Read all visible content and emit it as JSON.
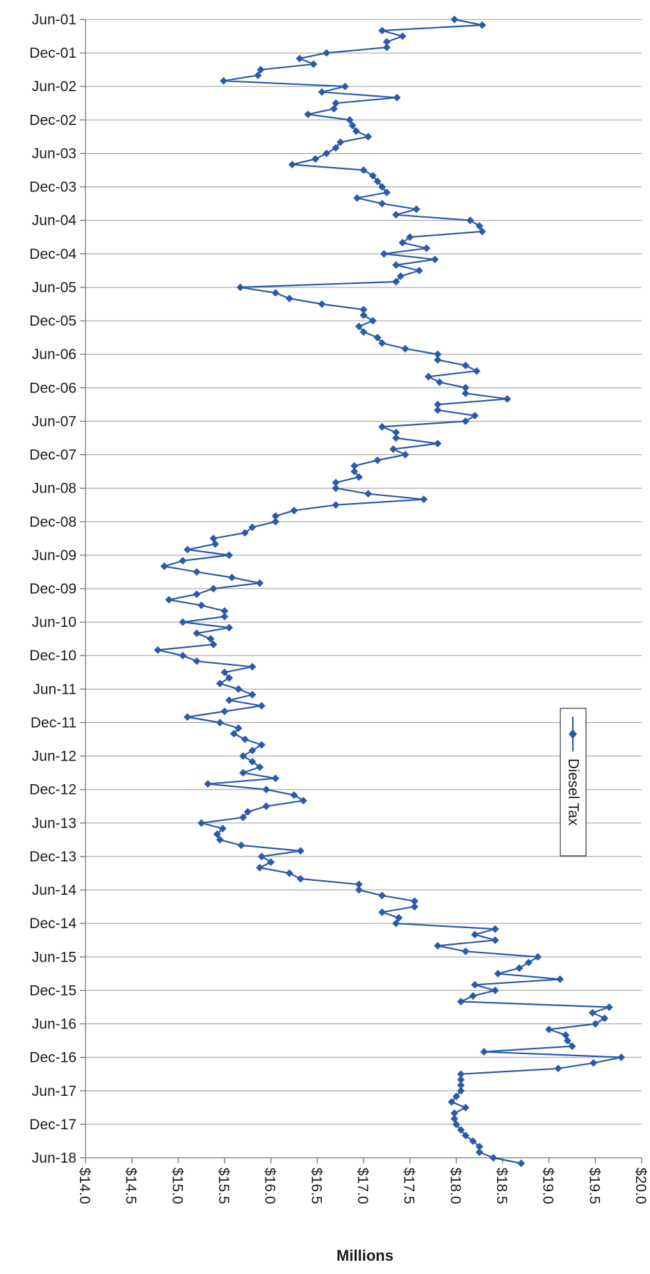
{
  "chart_data": {
    "type": "line",
    "xlabel": "Millions",
    "x_ticks": [
      "$14.0",
      "$14.5",
      "$15.0",
      "$15.5",
      "$16.0",
      "$16.5",
      "$17.0",
      "$17.5",
      "$18.0",
      "$18.5",
      "$19.0",
      "$19.5",
      "$20.0"
    ],
    "xlim": [
      14.0,
      20.0
    ],
    "y_ticks": [
      "Jun-01",
      "Dec-01",
      "Jun-02",
      "Dec-02",
      "Jun-03",
      "Dec-03",
      "Jun-04",
      "Dec-04",
      "Jun-05",
      "Dec-05",
      "Jun-06",
      "Dec-06",
      "Jun-07",
      "Dec-07",
      "Jun-08",
      "Dec-08",
      "Jun-09",
      "Dec-09",
      "Jun-10",
      "Dec-10",
      "Jun-11",
      "Dec-11",
      "Jun-12",
      "Dec-12",
      "Jun-13",
      "Dec-13",
      "Jun-14",
      "Dec-14",
      "Jun-15",
      "Dec-15",
      "Jun-16",
      "Dec-16",
      "Jun-17",
      "Dec-17",
      "Jun-18"
    ],
    "y_order": "top-to-bottom",
    "grid": true,
    "legend": {
      "position": "right",
      "orientation": "vertical"
    },
    "colors": {
      "series": "#2a5aa8"
    },
    "series": [
      {
        "name": "Diesel Tax",
        "start": "Jun-01",
        "frequency": "monthly",
        "values": [
          17.98,
          18.28,
          17.2,
          17.42,
          17.25,
          17.25,
          16.6,
          16.31,
          16.46,
          15.89,
          15.86,
          15.49,
          16.8,
          16.55,
          17.36,
          16.7,
          16.68,
          16.4,
          16.85,
          16.88,
          16.92,
          17.05,
          16.75,
          16.7,
          16.6,
          16.48,
          16.23,
          17.0,
          17.1,
          17.15,
          17.2,
          17.25,
          16.93,
          17.2,
          17.57,
          17.35,
          18.15,
          18.25,
          18.28,
          17.5,
          17.42,
          17.68,
          17.22,
          17.77,
          17.35,
          17.6,
          17.4,
          17.35,
          15.67,
          16.05,
          16.2,
          16.55,
          17.0,
          17.0,
          17.1,
          16.95,
          17.0,
          17.15,
          17.2,
          17.45,
          17.8,
          17.8,
          18.1,
          18.22,
          17.7,
          17.82,
          18.1,
          18.1,
          18.55,
          17.8,
          17.8,
          18.2,
          18.1,
          17.2,
          17.35,
          17.35,
          17.8,
          17.32,
          17.45,
          17.15,
          16.9,
          16.9,
          16.95,
          16.7,
          16.7,
          17.05,
          17.65,
          16.7,
          16.25,
          16.05,
          16.05,
          15.8,
          15.72,
          15.38,
          15.4,
          15.1,
          15.55,
          15.05,
          14.85,
          15.2,
          15.58,
          15.88,
          15.38,
          15.2,
          14.9,
          15.25,
          15.5,
          15.5,
          15.05,
          15.55,
          15.2,
          15.35,
          15.38,
          14.78,
          15.05,
          15.2,
          15.8,
          15.5,
          15.55,
          15.45,
          15.65,
          15.8,
          15.55,
          15.9,
          15.5,
          15.1,
          15.45,
          15.65,
          15.6,
          15.72,
          15.9,
          15.8,
          15.7,
          15.8,
          15.88,
          15.7,
          16.05,
          15.32,
          15.95,
          16.25,
          16.35,
          15.95,
          15.75,
          15.7,
          15.25,
          15.48,
          15.42,
          15.45,
          15.68,
          16.32,
          15.9,
          16.0,
          15.88,
          16.2,
          16.32,
          16.95,
          16.95,
          17.2,
          17.55,
          17.55,
          17.2,
          17.38,
          17.35,
          18.42,
          18.2,
          18.42,
          17.8,
          18.1,
          18.88,
          18.78,
          18.68,
          18.45,
          19.12,
          18.2,
          18.42,
          18.18,
          18.05,
          19.65,
          19.47,
          19.6,
          19.5,
          19.0,
          19.18,
          19.2,
          19.25,
          18.3,
          19.78,
          19.48,
          19.1,
          18.05,
          18.05,
          18.05,
          18.05,
          18.0,
          17.95,
          18.1,
          17.98,
          17.98,
          18.0,
          18.05,
          18.1,
          18.18,
          18.25,
          18.25,
          18.4,
          18.7
        ]
      }
    ]
  }
}
